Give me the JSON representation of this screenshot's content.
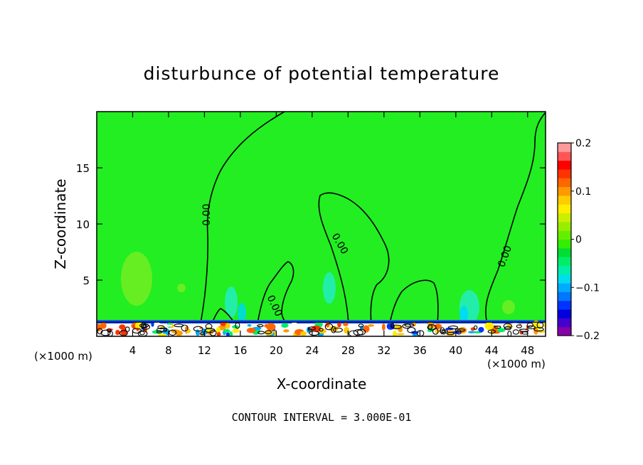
{
  "chart_data": {
    "type": "heatmap",
    "title": "disturbunce of potential temperature",
    "xlabel": "X-coordinate",
    "ylabel": "Z-coordinate",
    "x_unit": "(×1000 m)",
    "x_unit_right": "(×1000 m)",
    "xlim": [
      0,
      50
    ],
    "ylim": [
      0,
      20
    ],
    "x_ticks": [
      4,
      8,
      12,
      16,
      20,
      24,
      28,
      32,
      36,
      40,
      44,
      48
    ],
    "y_ticks": [
      5,
      10,
      15
    ],
    "contour_interval_text": "CONTOUR INTERVAL = 3.000E-01",
    "contour_labels": [
      "0.00",
      "0.00",
      "0.00",
      "0.00"
    ],
    "colorbar": {
      "min": -0.2,
      "max": 0.2,
      "tick_values": [
        0.2,
        0.1,
        0,
        -0.1,
        -0.2
      ],
      "tick_labels": [
        "0.2",
        "0.1",
        "0",
        "−0.1",
        "−0.2"
      ],
      "colors": [
        "#8800aa",
        "#4400cc",
        "#0000dd",
        "#0033ff",
        "#0077ff",
        "#00aaff",
        "#00ddee",
        "#00eeaa",
        "#00ee66",
        "#00dd33",
        "#33ee00",
        "#66ee00",
        "#99ee00",
        "#ccee00",
        "#ffee00",
        "#ffcc00",
        "#ff9900",
        "#ff6600",
        "#ff3300",
        "#ff0000",
        "#ff5555",
        "#ff9999"
      ]
    },
    "background_color": "#22ee22"
  }
}
